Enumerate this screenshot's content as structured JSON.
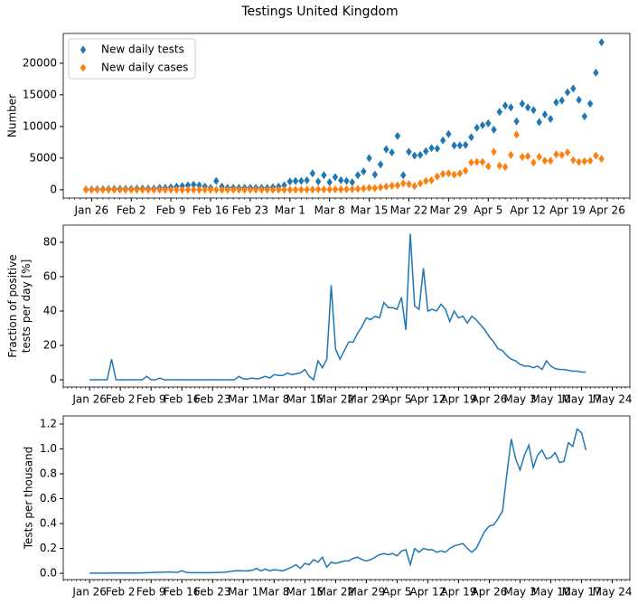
{
  "title": "Testings United Kingdom",
  "chart_data": [
    {
      "type": "scatter",
      "ylabel": [
        "Number"
      ],
      "legend": "upper left",
      "marker": "diamond",
      "xlim": [
        "Jan 21",
        "Apr 30"
      ],
      "ylim": [
        -1300,
        24700
      ],
      "yticks": [
        0,
        5000,
        10000,
        15000,
        20000
      ],
      "xticks": [
        "Jan 26",
        "Feb 2",
        "Feb 9",
        "Feb 16",
        "Feb 23",
        "Mar 1",
        "Mar 8",
        "Mar 15",
        "Mar 22",
        "Mar 29",
        "Apr 5",
        "Apr 12",
        "Apr 19",
        "Apr 26"
      ],
      "x": [
        "Jan 25",
        "Jan 26",
        "Jan 27",
        "Jan 28",
        "Jan 29",
        "Jan 30",
        "Jan 31",
        "Feb 1",
        "Feb 2",
        "Feb 3",
        "Feb 4",
        "Feb 5",
        "Feb 6",
        "Feb 7",
        "Feb 8",
        "Feb 9",
        "Feb 10",
        "Feb 11",
        "Feb 12",
        "Feb 13",
        "Feb 14",
        "Feb 15",
        "Feb 16",
        "Feb 17",
        "Feb 18",
        "Feb 19",
        "Feb 20",
        "Feb 21",
        "Feb 22",
        "Feb 23",
        "Feb 24",
        "Feb 25",
        "Feb 26",
        "Feb 27",
        "Feb 28",
        "Feb 29",
        "Mar 1",
        "Mar 2",
        "Mar 3",
        "Mar 4",
        "Mar 5",
        "Mar 6",
        "Mar 7",
        "Mar 8",
        "Mar 9",
        "Mar 10",
        "Mar 11",
        "Mar 12",
        "Mar 13",
        "Mar 14",
        "Mar 15",
        "Mar 16",
        "Mar 17",
        "Mar 18",
        "Mar 19",
        "Mar 20",
        "Mar 21",
        "Mar 22",
        "Mar 23",
        "Mar 24",
        "Mar 25",
        "Mar 26",
        "Mar 27",
        "Mar 28",
        "Mar 29",
        "Mar 30",
        "Mar 31",
        "Apr 1",
        "Apr 2",
        "Apr 3",
        "Apr 4",
        "Apr 5",
        "Apr 6",
        "Apr 7",
        "Apr 8",
        "Apr 9",
        "Apr 10",
        "Apr 11",
        "Apr 12",
        "Apr 13",
        "Apr 14",
        "Apr 15",
        "Apr 16",
        "Apr 17",
        "Apr 18",
        "Apr 19",
        "Apr 20",
        "Apr 21",
        "Apr 22",
        "Apr 23",
        "Apr 24",
        "Apr 25"
      ],
      "series": [
        {
          "name": "New daily tests",
          "color": "#1f77b4",
          "values": [
            50,
            70,
            100,
            100,
            120,
            130,
            150,
            150,
            150,
            200,
            200,
            200,
            200,
            300,
            300,
            400,
            500,
            600,
            700,
            800,
            700,
            500,
            300,
            1400,
            500,
            300,
            300,
            300,
            300,
            300,
            300,
            300,
            300,
            400,
            500,
            700,
            1300,
            1400,
            1400,
            1500,
            2600,
            1300,
            2300,
            1200,
            2000,
            1500,
            1400,
            1200,
            2300,
            2900,
            5000,
            2400,
            4000,
            6400,
            5900,
            8500,
            2300,
            6000,
            5400,
            5500,
            6100,
            6600,
            6500,
            7800,
            8800,
            7000,
            7000,
            7100,
            8300,
            9800,
            10200,
            10500,
            9500,
            12300,
            13300,
            13000,
            10800,
            13600,
            13000,
            12600,
            10700,
            11900,
            11200,
            13800,
            14100,
            15400,
            16000,
            14200,
            11600,
            13600,
            18500,
            23300
          ]
        },
        {
          "name": "New daily cases",
          "color": "#ff7f0e",
          "values": [
            0,
            0,
            0,
            0,
            0,
            0,
            2,
            0,
            0,
            2,
            0,
            0,
            0,
            0,
            1,
            0,
            0,
            1,
            0,
            0,
            0,
            0,
            0,
            0,
            0,
            0,
            0,
            0,
            0,
            3,
            4,
            2,
            2,
            5,
            6,
            10,
            10,
            10,
            20,
            30,
            40,
            50,
            50,
            60,
            70,
            80,
            80,
            100,
            150,
            200,
            300,
            250,
            400,
            500,
            650,
            700,
            1000,
            900,
            600,
            1000,
            1400,
            1500,
            2100,
            2500,
            2600,
            2400,
            2600,
            3000,
            4300,
            4400,
            4400,
            3700,
            6000,
            3800,
            3600,
            5500,
            8700,
            5200,
            5300,
            4300,
            5200,
            4600,
            4600,
            5600,
            5500,
            5900,
            4700,
            4400,
            4500,
            4600,
            5400,
            4900
          ]
        }
      ]
    },
    {
      "type": "line",
      "ylabel": [
        "Fraction of positive",
        "tests per day [%]"
      ],
      "xlim": [
        "Jan 20",
        "May 28"
      ],
      "ylim": [
        -4.2,
        90
      ],
      "yticks": [
        0,
        20,
        40,
        60,
        80
      ],
      "xticks": [
        "Jan 26",
        "Feb 2",
        "Feb 9",
        "Feb 16",
        "Feb 23",
        "Mar 1",
        "Mar 8",
        "Mar 15",
        "Mar 22",
        "Mar 29",
        "Apr 5",
        "Apr 12",
        "Apr 19",
        "Apr 26",
        "May 3",
        "May 10",
        "May 17",
        "May 24"
      ],
      "x": [
        "Jan 26",
        "Jan 27",
        "Jan 28",
        "Jan 29",
        "Jan 30",
        "Jan 31",
        "Feb 1",
        "Feb 2",
        "Feb 3",
        "Feb 4",
        "Feb 5",
        "Feb 6",
        "Feb 7",
        "Feb 8",
        "Feb 9",
        "Feb 10",
        "Feb 11",
        "Feb 12",
        "Feb 13",
        "Feb 14",
        "Feb 15",
        "Feb 16",
        "Feb 17",
        "Feb 18",
        "Feb 19",
        "Feb 20",
        "Feb 21",
        "Feb 22",
        "Feb 23",
        "Feb 24",
        "Feb 25",
        "Feb 26",
        "Feb 27",
        "Feb 28",
        "Feb 29",
        "Mar 1",
        "Mar 2",
        "Mar 3",
        "Mar 4",
        "Mar 5",
        "Mar 6",
        "Mar 7",
        "Mar 8",
        "Mar 9",
        "Mar 10",
        "Mar 11",
        "Mar 12",
        "Mar 13",
        "Mar 14",
        "Mar 15",
        "Mar 16",
        "Mar 17",
        "Mar 18",
        "Mar 19",
        "Mar 20",
        "Mar 21",
        "Mar 22",
        "Mar 23",
        "Mar 24",
        "Mar 25",
        "Mar 26",
        "Mar 27",
        "Mar 28",
        "Mar 29",
        "Mar 30",
        "Mar 31",
        "Apr 1",
        "Apr 2",
        "Apr 3",
        "Apr 4",
        "Apr 5",
        "Apr 6",
        "Apr 7",
        "Apr 8",
        "Apr 9",
        "Apr 10",
        "Apr 11",
        "Apr 12",
        "Apr 13",
        "Apr 14",
        "Apr 15",
        "Apr 16",
        "Apr 17",
        "Apr 18",
        "Apr 19",
        "Apr 20",
        "Apr 21",
        "Apr 22",
        "Apr 23",
        "Apr 24",
        "Apr 25",
        "Apr 26",
        "Apr 27",
        "Apr 28",
        "Apr 29",
        "Apr 30",
        "May 1",
        "May 2",
        "May 3",
        "May 4",
        "May 5",
        "May 6",
        "May 7",
        "May 8",
        "May 9",
        "May 10",
        "May 11",
        "May 12",
        "May 13",
        "May 14",
        "May 15",
        "May 16",
        "May 17",
        "May 18"
      ],
      "series": [
        {
          "color": "#1f77b4",
          "values": [
            0,
            0,
            0,
            0,
            0,
            12,
            0,
            0,
            0,
            0,
            0,
            0,
            0,
            2,
            0,
            0,
            1,
            0,
            0,
            0,
            0,
            0,
            0,
            0,
            0,
            0,
            0,
            0,
            0,
            0,
            0,
            0,
            0,
            0,
            2,
            0.5,
            0.5,
            1,
            0.5,
            1,
            2,
            1,
            3,
            2.5,
            2.5,
            4,
            3,
            3.5,
            4,
            6,
            2,
            0,
            11,
            7,
            12,
            55,
            18,
            12,
            17,
            22,
            22,
            27,
            31,
            36,
            35,
            37,
            36,
            45,
            42,
            42,
            41,
            48,
            29,
            85,
            43,
            41,
            65,
            40,
            41,
            40,
            44,
            41,
            34,
            40,
            36,
            37,
            33,
            37,
            35,
            32,
            29,
            25,
            22,
            18,
            17,
            14,
            12,
            11,
            9,
            8,
            8,
            7,
            8,
            6,
            11,
            8,
            6.5,
            6,
            6,
            5.5,
            5,
            5,
            4.5,
            4.5
          ]
        }
      ]
    },
    {
      "type": "line",
      "ylabel": [
        "Tests per thousand"
      ],
      "xlim": [
        "Jan 20",
        "May 28"
      ],
      "ylim": [
        -0.05,
        1.265
      ],
      "yticks": [
        {
          "value": 0,
          "label": "0.0"
        },
        {
          "value": 0.2,
          "label": "0.2"
        },
        {
          "value": 0.4,
          "label": "0.4"
        },
        {
          "value": 0.6,
          "label": "0.6"
        },
        {
          "value": 0.8,
          "label": "0.8"
        },
        {
          "value": 1,
          "label": "1.0"
        },
        {
          "value": 1.2,
          "label": "1.2"
        }
      ],
      "xticks": [
        "Jan 26",
        "Feb 2",
        "Feb 9",
        "Feb 16",
        "Feb 23",
        "Mar 1",
        "Mar 8",
        "Mar 15",
        "Mar 22",
        "Mar 29",
        "Apr 5",
        "Apr 12",
        "Apr 19",
        "Apr 26",
        "May 3",
        "May 10",
        "May 17",
        "May 24"
      ],
      "x": [
        "Jan 26",
        "Jan 27",
        "Jan 28",
        "Jan 29",
        "Jan 30",
        "Jan 31",
        "Feb 1",
        "Feb 2",
        "Feb 3",
        "Feb 4",
        "Feb 5",
        "Feb 6",
        "Feb 7",
        "Feb 8",
        "Feb 9",
        "Feb 10",
        "Feb 11",
        "Feb 12",
        "Feb 13",
        "Feb 14",
        "Feb 15",
        "Feb 16",
        "Feb 17",
        "Feb 18",
        "Feb 19",
        "Feb 20",
        "Feb 21",
        "Feb 22",
        "Feb 23",
        "Feb 24",
        "Feb 25",
        "Feb 26",
        "Feb 27",
        "Feb 28",
        "Feb 29",
        "Mar 1",
        "Mar 2",
        "Mar 3",
        "Mar 4",
        "Mar 5",
        "Mar 6",
        "Mar 7",
        "Mar 8",
        "Mar 9",
        "Mar 10",
        "Mar 11",
        "Mar 12",
        "Mar 13",
        "Mar 14",
        "Mar 15",
        "Mar 16",
        "Mar 17",
        "Mar 18",
        "Mar 19",
        "Mar 20",
        "Mar 21",
        "Mar 22",
        "Mar 23",
        "Mar 24",
        "Mar 25",
        "Mar 26",
        "Mar 27",
        "Mar 28",
        "Mar 29",
        "Mar 30",
        "Mar 31",
        "Apr 1",
        "Apr 2",
        "Apr 3",
        "Apr 4",
        "Apr 5",
        "Apr 6",
        "Apr 7",
        "Apr 8",
        "Apr 9",
        "Apr 10",
        "Apr 11",
        "Apr 12",
        "Apr 13",
        "Apr 14",
        "Apr 15",
        "Apr 16",
        "Apr 17",
        "Apr 18",
        "Apr 19",
        "Apr 20",
        "Apr 21",
        "Apr 22",
        "Apr 23",
        "Apr 24",
        "Apr 25",
        "Apr 26",
        "Apr 27",
        "Apr 28",
        "Apr 29",
        "Apr 30",
        "May 1",
        "May 2",
        "May 3",
        "May 4",
        "May 5",
        "May 6",
        "May 7",
        "May 8",
        "May 9",
        "May 10",
        "May 11",
        "May 12",
        "May 13",
        "May 14",
        "May 15",
        "May 16",
        "May 17",
        "May 18"
      ],
      "series": [
        {
          "color": "#1f77b4",
          "values": [
            0.002,
            0.002,
            0.002,
            0.002,
            0.002,
            0.003,
            0.003,
            0.003,
            0.003,
            0.003,
            0.003,
            0.004,
            0.004,
            0.005,
            0.006,
            0.008,
            0.009,
            0.01,
            0.012,
            0.01,
            0.008,
            0.021,
            0.008,
            0.005,
            0.005,
            0.005,
            0.005,
            0.005,
            0.006,
            0.007,
            0.008,
            0.01,
            0.015,
            0.02,
            0.022,
            0.02,
            0.02,
            0.025,
            0.04,
            0.02,
            0.035,
            0.02,
            0.03,
            0.025,
            0.02,
            0.035,
            0.05,
            0.07,
            0.04,
            0.08,
            0.07,
            0.11,
            0.09,
            0.13,
            0.05,
            0.09,
            0.08,
            0.09,
            0.1,
            0.1,
            0.12,
            0.13,
            0.11,
            0.1,
            0.11,
            0.13,
            0.15,
            0.16,
            0.15,
            0.16,
            0.14,
            0.18,
            0.19,
            0.07,
            0.2,
            0.17,
            0.2,
            0.19,
            0.19,
            0.17,
            0.18,
            0.17,
            0.2,
            0.22,
            0.23,
            0.24,
            0.2,
            0.17,
            0.2,
            0.27,
            0.34,
            0.38,
            0.39,
            0.44,
            0.5,
            0.8,
            1.08,
            0.92,
            0.83,
            0.95,
            1.03,
            0.85,
            0.95,
            0.99,
            0.92,
            0.93,
            0.97,
            0.89,
            0.9,
            1.05,
            1.02,
            1.16,
            1.13,
            0.99
          ]
        }
      ]
    }
  ]
}
